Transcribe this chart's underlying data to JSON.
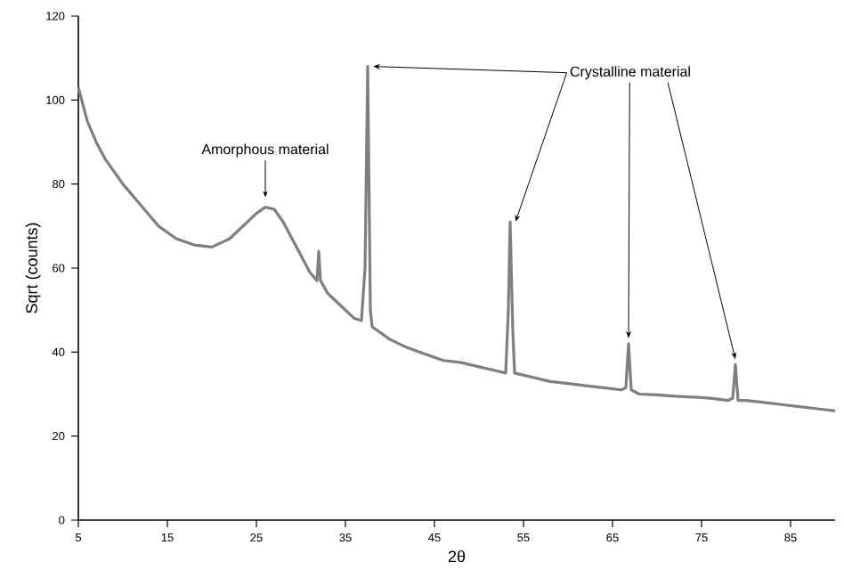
{
  "chart_data": {
    "type": "line",
    "xlabel": "2θ",
    "ylabel": "Sqrt (counts)",
    "xlim": [
      5,
      90
    ],
    "ylim": [
      0,
      120
    ],
    "xticks": [
      5,
      15,
      25,
      35,
      45,
      55,
      65,
      75,
      85
    ],
    "yticks": [
      0,
      20,
      40,
      60,
      80,
      100,
      120
    ],
    "grid": false,
    "marker": "none",
    "line_style": "solid",
    "annotations": [
      {
        "text": "Amorphous material",
        "x": 26,
        "y": 75.5
      },
      {
        "text": "Crystalline material",
        "x": 37.5,
        "y": 108
      }
    ],
    "series": [
      {
        "color": "#7f7f7f",
        "x": [
          5,
          6,
          7,
          8,
          10,
          12,
          14,
          16,
          18,
          20,
          22,
          24,
          25,
          26,
          27,
          28,
          29,
          30,
          31,
          31.8,
          32,
          32.2,
          33,
          34,
          35,
          36,
          36.8,
          37.2,
          37.5,
          37.8,
          38,
          40,
          42,
          44,
          46,
          48,
          50,
          52,
          53,
          53.3,
          53.5,
          53.8,
          54,
          56,
          58,
          60,
          62,
          64,
          66,
          66.5,
          66.8,
          67.1,
          68,
          70,
          72,
          74,
          76,
          78,
          78.5,
          78.8,
          79.1,
          80,
          82,
          84,
          86,
          88,
          90
        ],
        "values": [
          103,
          95,
          90,
          86,
          80,
          75,
          70,
          67,
          65.5,
          65,
          67,
          71,
          73,
          74.5,
          74,
          71,
          67,
          63,
          59,
          57,
          64,
          57,
          54,
          52,
          50,
          48,
          47.5,
          60,
          108,
          50,
          46,
          43,
          41,
          39.5,
          38,
          37.5,
          36.5,
          35.5,
          35,
          50,
          71,
          45,
          35,
          34,
          33,
          32.5,
          32,
          31.5,
          31,
          31.5,
          42,
          31,
          30,
          29.8,
          29.5,
          29.3,
          29,
          28.5,
          29,
          37,
          28.5,
          28.5,
          28,
          27.5,
          27,
          26.5,
          26
        ]
      }
    ]
  }
}
